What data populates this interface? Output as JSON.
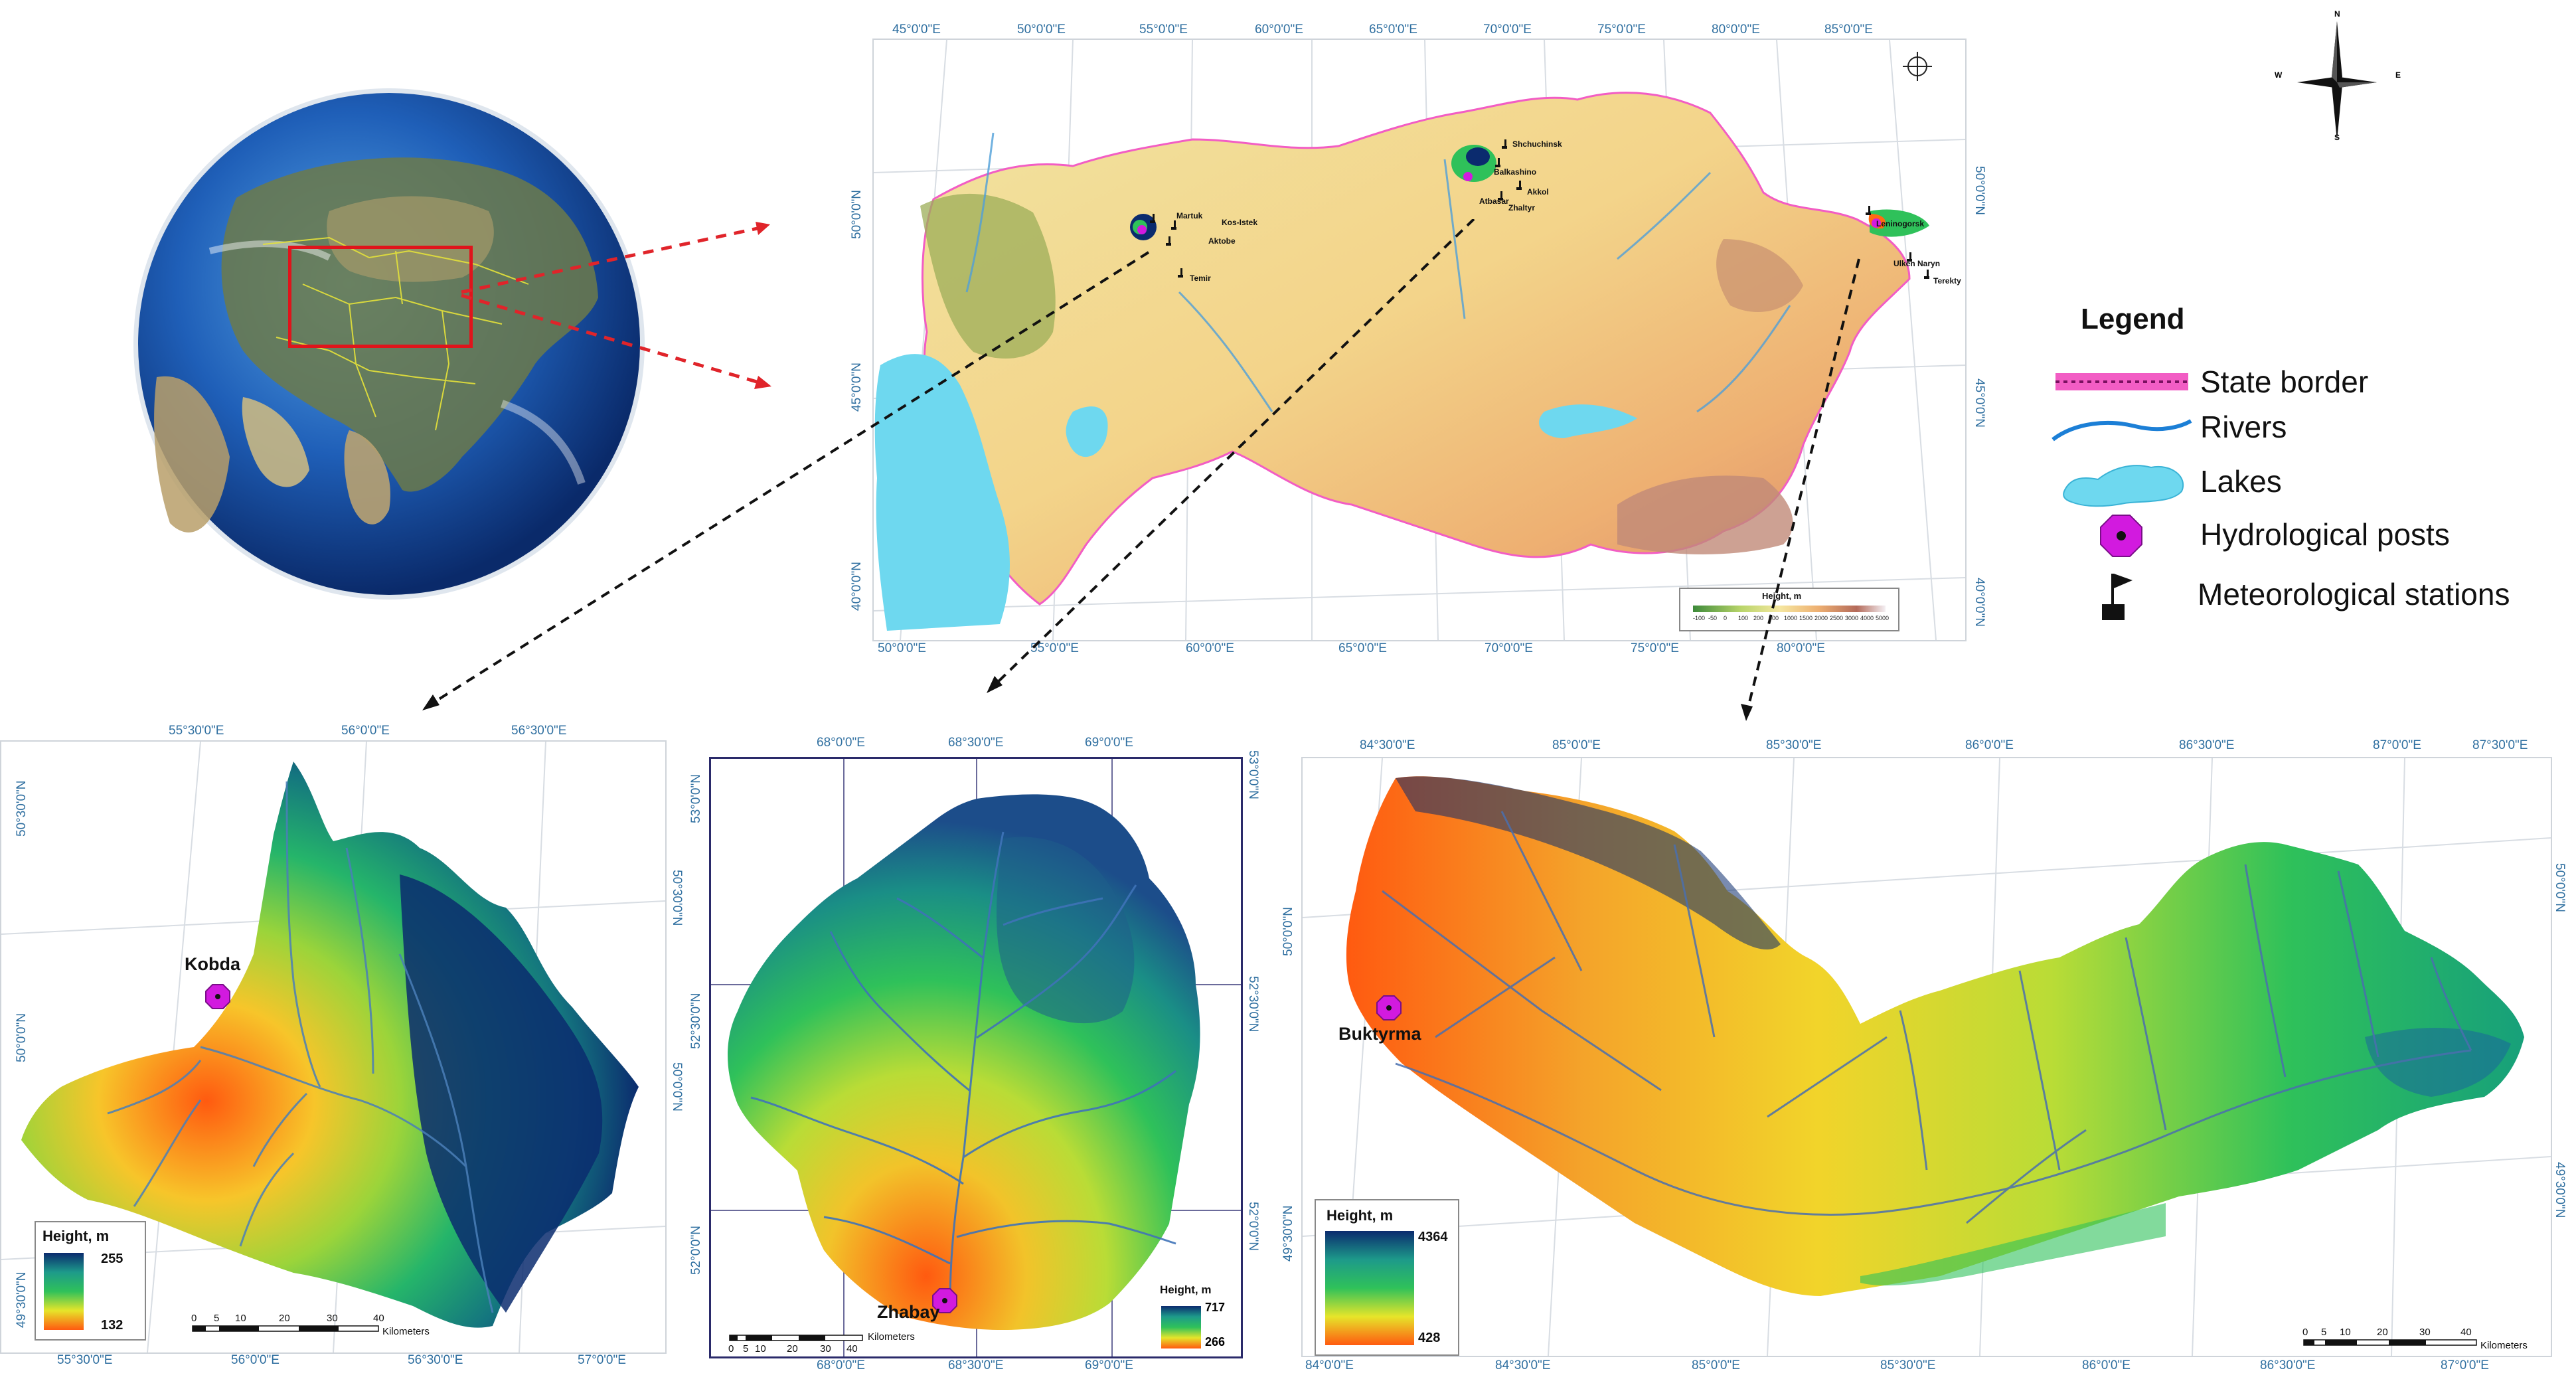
{
  "colors": {
    "arrow_red": "#e0242a",
    "arrow_black": "#111111",
    "coord_blue": "#2f6fa0",
    "globe_box": "#e0141b",
    "post_magenta": "#d21adf",
    "border_pink": "#f25dc4",
    "river_blue": "#1c7fd6",
    "lake_cyan": "#6ed8ef",
    "ramp_high": "#0b2b6e",
    "ramp_mid": "#2fc15a",
    "ramp_low": "#ff6a12"
  },
  "legend": {
    "title": "Legend",
    "items": [
      {
        "label": "State border",
        "icon": "state-border-symbol"
      },
      {
        "label": "Rivers",
        "icon": "river-symbol"
      },
      {
        "label": "Lakes",
        "icon": "lake-symbol"
      },
      {
        "label": "Hydrological posts",
        "icon": "hydrological-post-symbol"
      },
      {
        "label": "Meteorological stations",
        "icon": "meteorological-station-symbol"
      }
    ]
  },
  "compass": {
    "n": "N",
    "s": "S",
    "e": "E",
    "w": "W"
  },
  "main_map": {
    "top_lon": [
      "45°0'0\"E",
      "50°0'0\"E",
      "55°0'0\"E",
      "60°0'0\"E",
      "65°0'0\"E",
      "70°0'0\"E",
      "75°0'0\"E",
      "80°0'0\"E",
      "85°0'0\"E"
    ],
    "bottom_lon": [
      "50°0'0\"E",
      "55°0'0\"E",
      "60°0'0\"E",
      "65°0'0\"E",
      "70°0'0\"E",
      "75°0'0\"E",
      "80°0'0\"E"
    ],
    "left_lat": [
      "50°0'0\"N",
      "45°0'0\"N",
      "40°0'0\"N"
    ],
    "right_lat": [
      "50°0'0\"N",
      "45°0'0\"N",
      "40°0'0\"N"
    ],
    "height_legend_title": "Height, m",
    "height_legend_ticks": [
      "-100",
      "-50",
      "0",
      "100",
      "200",
      "500",
      "1000",
      "1500",
      "2000",
      "2500",
      "3000",
      "4000",
      "5000"
    ],
    "stations_west": [
      "Martuk",
      "Kos-Istek",
      "Aktobe",
      "Temir"
    ],
    "stations_center": [
      "Shchuchinsk",
      "Balkashino",
      "Atbasar",
      "Akkol",
      "Zhaltyr"
    ],
    "stations_east": [
      "Leninogorsk",
      "Ulken Naryn",
      "Terekty"
    ]
  },
  "map_left": {
    "top_lon": [
      "55°30'0\"E",
      "56°0'0\"E",
      "56°30'0\"E"
    ],
    "bottom_lon": [
      "55°30'0\"E",
      "56°0'0\"E",
      "56°30'0\"E",
      "57°0'0\"E"
    ],
    "left_lat": [
      "50°30'0\"N",
      "50°0'0\"N",
      "49°30'0\"N"
    ],
    "right_lat": [
      "50°30'0\"N",
      "50°0'0\"N"
    ],
    "post": "Kobda",
    "height_title": "Height, m",
    "height_max": "255",
    "height_min": "132",
    "scale_ticks": [
      "0",
      "5",
      "10",
      "20",
      "30",
      "40"
    ],
    "scale_unit": "Kilometers"
  },
  "map_center": {
    "top_lon": [
      "68°0'0\"E",
      "68°30'0\"E",
      "69°0'0\"E"
    ],
    "bottom_lon": [
      "68°0'0\"E",
      "68°30'0\"E",
      "69°0'0\"E"
    ],
    "left_lat": [
      "53°0'0\"N",
      "52°30'0\"N",
      "52°0'0\"N"
    ],
    "right_lat": [
      "53°0'0\"N",
      "52°30'0\"N",
      "52°0'0\"N"
    ],
    "post": "Zhabay",
    "height_title": "Height, m",
    "height_max": "717",
    "height_min": "266",
    "scale_ticks": [
      "0",
      "5",
      "10",
      "20",
      "30",
      "40"
    ],
    "scale_unit": "Kilometers"
  },
  "map_right": {
    "top_lon": [
      "84°30'0\"E",
      "85°0'0\"E",
      "85°30'0\"E",
      "86°0'0\"E",
      "86°30'0\"E",
      "87°0'0\"E",
      "87°30'0\"E"
    ],
    "bottom_lon": [
      "84°0'0\"E",
      "84°30'0\"E",
      "85°0'0\"E",
      "85°30'0\"E",
      "86°0'0\"E",
      "86°30'0\"E",
      "87°0'0\"E"
    ],
    "left_lat": [
      "50°0'0\"N",
      "49°30'0\"N"
    ],
    "right_lat": [
      "50°0'0\"N",
      "49°30'0\"N"
    ],
    "post": "Buktyrma",
    "height_title": "Height, m",
    "height_max": "4364",
    "height_min": "428",
    "scale_ticks": [
      "0",
      "5",
      "10",
      "20",
      "30",
      "40"
    ],
    "scale_unit": "Kilometers"
  }
}
